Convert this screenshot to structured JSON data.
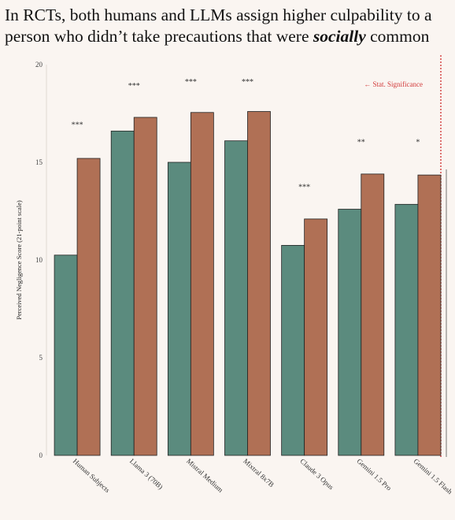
{
  "title_parts": {
    "before": "In RCTs, both humans and LLMs assign higher culpability to a person who didn’t take precautions that were ",
    "emphasis": "socially",
    "after": " common"
  },
  "colors": {
    "series_a": "#5b8b7e",
    "series_b": "#b07055",
    "significance_line": "#d23a3a"
  },
  "chart_data": {
    "type": "bar",
    "ylabel": "Perceived Negligence Score (21-point scale)",
    "ylim": [
      0,
      20
    ],
    "yticks": [
      0,
      5,
      10,
      15,
      20
    ],
    "categories": [
      "Human Subjects",
      "Llama 3 (70B)",
      "Mistral Medium",
      "Mixtral 8x7B",
      "Claude 3 Opus",
      "Gemini 1.5 Pro",
      "Gemini 1.5 Flash"
    ],
    "series": [
      {
        "values": [
          10.25,
          16.6,
          15.0,
          16.1,
          10.75,
          12.6,
          12.85
        ]
      },
      {
        "values": [
          15.2,
          17.3,
          17.55,
          17.6,
          12.1,
          14.4,
          14.35
        ]
      }
    ],
    "significance": [
      "***",
      "***",
      "***",
      "***",
      "***",
      "**",
      "*"
    ],
    "significance_y": [
      16.8,
      18.8,
      19.0,
      19.0,
      13.6,
      15.9,
      15.9
    ],
    "legend": "← Stat. Significance",
    "grid": false
  }
}
